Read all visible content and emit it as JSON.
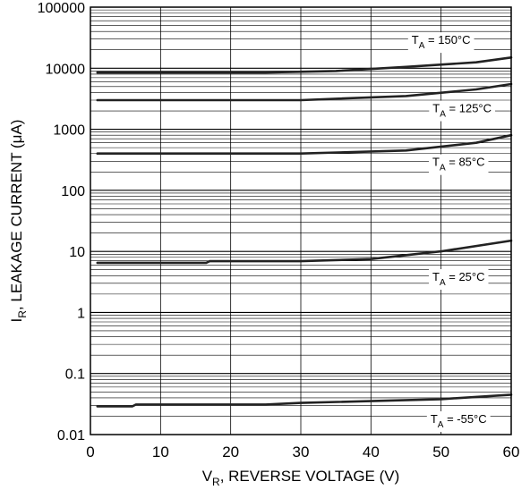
{
  "chart_data": {
    "type": "line",
    "x_scale": "linear",
    "y_scale": "log",
    "xlim": [
      0,
      60
    ],
    "ylim": [
      0.01,
      100000
    ],
    "grid": true,
    "x_ticks": [
      0,
      10,
      20,
      30,
      40,
      50,
      60
    ],
    "x_tick_labels": [
      "0",
      "10",
      "20",
      "30",
      "40",
      "50",
      "60"
    ],
    "y_ticks": [
      0.01,
      0.1,
      1,
      10,
      100,
      1000,
      10000,
      100000
    ],
    "y_tick_labels": [
      "0.01",
      "0.1",
      "1",
      "10",
      "100",
      "1000",
      "10000",
      "100000"
    ],
    "xlabel": {
      "main": "V",
      "sub": "R",
      "rest": ", REVERSE VOLTAGE (V)"
    },
    "ylabel": {
      "main": "I",
      "sub": "R",
      "rest": ", LEAKAGE CURRENT (μA)"
    },
    "series": [
      {
        "label_main": "T",
        "label_sub": "A",
        "label_rest": " = 150°C",
        "label_at": [
          50,
          25000
        ],
        "x": [
          1,
          25,
          35,
          45,
          55,
          60
        ],
        "y": [
          8500,
          8500,
          9000,
          10500,
          12500,
          15000
        ]
      },
      {
        "label_main": "T",
        "label_sub": "A",
        "label_rest": " = 125°C",
        "label_at": [
          53,
          1900
        ],
        "x": [
          1,
          30,
          45,
          55,
          60
        ],
        "y": [
          3000,
          3000,
          3500,
          4500,
          5500
        ]
      },
      {
        "label_main": "T",
        "label_sub": "A",
        "label_rest": " = 85°C",
        "label_at": [
          52.5,
          250
        ],
        "x": [
          1,
          30,
          45,
          55,
          60
        ],
        "y": [
          400,
          400,
          450,
          600,
          800
        ]
      },
      {
        "label_main": "T",
        "label_sub": "A",
        "label_rest": " = 25°C",
        "label_at": [
          52.5,
          3.3
        ],
        "x": [
          1,
          16.5,
          17,
          30,
          40,
          50,
          60
        ],
        "y": [
          6.5,
          6.5,
          6.9,
          6.9,
          7.5,
          10,
          15
        ]
      },
      {
        "label_main": "T",
        "label_sub": "A",
        "label_rest": " = -55°C",
        "label_at": [
          52.5,
          0.0155
        ],
        "x": [
          1,
          6,
          6.5,
          25,
          30,
          50,
          60
        ],
        "y": [
          0.029,
          0.029,
          0.031,
          0.031,
          0.033,
          0.038,
          0.045
        ]
      }
    ]
  }
}
